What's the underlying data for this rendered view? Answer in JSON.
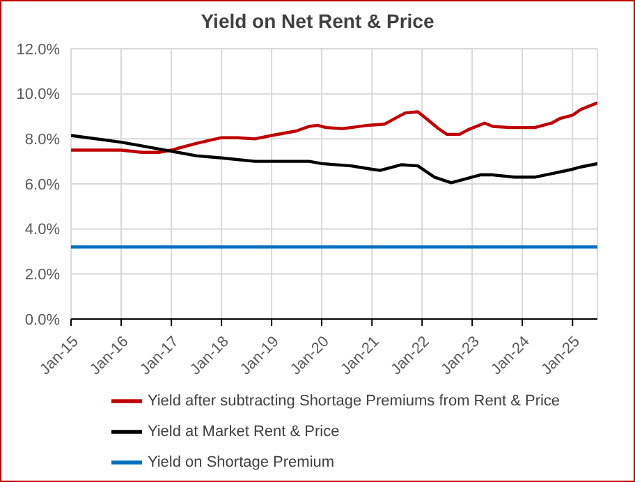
{
  "chart_data": {
    "type": "line",
    "title": "Yield on Net Rent & Price",
    "xlim": [
      "2015-01",
      "2025-07"
    ],
    "xticks": [
      {
        "value": "2015-01",
        "label": "Jan-15"
      },
      {
        "value": "2016-01",
        "label": "Jan-16"
      },
      {
        "value": "2017-01",
        "label": "Jan-17"
      },
      {
        "value": "2018-01",
        "label": "Jan-18"
      },
      {
        "value": "2019-01",
        "label": "Jan-19"
      },
      {
        "value": "2020-01",
        "label": "Jan-20"
      },
      {
        "value": "2021-01",
        "label": "Jan-21"
      },
      {
        "value": "2022-01",
        "label": "Jan-22"
      },
      {
        "value": "2023-01",
        "label": "Jan-23"
      },
      {
        "value": "2024-01",
        "label": "Jan-24"
      },
      {
        "value": "2025-01",
        "label": "Jan-25"
      }
    ],
    "ylim": [
      0,
      12
    ],
    "yticks": [
      {
        "value": 0,
        "label": "0.0%"
      },
      {
        "value": 2,
        "label": "2.0%"
      },
      {
        "value": 4,
        "label": "4.0%"
      },
      {
        "value": 6,
        "label": "6.0%"
      },
      {
        "value": 8,
        "label": "8.0%"
      },
      {
        "value": 10,
        "label": "10.0%"
      },
      {
        "value": 12,
        "label": "12.0%"
      }
    ],
    "grid": true,
    "legend": "bottom",
    "marker": "none",
    "line_style": "solid",
    "series": [
      {
        "name": "Yield after subtracting Shortage Premiums from Rent & Price",
        "color": "#c00000",
        "x": [
          "2015-01",
          "2016-01",
          "2016-06",
          "2016-10",
          "2017-01",
          "2017-07",
          "2018-01",
          "2018-05",
          "2018-09",
          "2019-01",
          "2019-07",
          "2019-10",
          "2019-12",
          "2020-02",
          "2020-06",
          "2020-12",
          "2021-04",
          "2021-07",
          "2021-09",
          "2021-12",
          "2022-02",
          "2022-05",
          "2022-07",
          "2022-10",
          "2022-12",
          "2023-04",
          "2023-06",
          "2023-10",
          "2024-04",
          "2024-08",
          "2024-10",
          "2025-01",
          "2025-03",
          "2025-07"
        ],
        "values": [
          7.5,
          7.5,
          7.4,
          7.4,
          7.5,
          7.8,
          8.05,
          8.05,
          8.0,
          8.15,
          8.35,
          8.55,
          8.6,
          8.5,
          8.45,
          8.6,
          8.65,
          8.95,
          9.15,
          9.2,
          8.9,
          8.45,
          8.2,
          8.2,
          8.4,
          8.7,
          8.55,
          8.5,
          8.5,
          8.7,
          8.9,
          9.05,
          9.3,
          9.6
        ]
      },
      {
        "name": "Yield at Market Rent & Price",
        "color": "#000000",
        "x": [
          "2015-01",
          "2016-01",
          "2017-01",
          "2017-07",
          "2018-01",
          "2018-09",
          "2019-10",
          "2020-01",
          "2020-08",
          "2021-01",
          "2021-03",
          "2021-08",
          "2021-12",
          "2022-04",
          "2022-08",
          "2022-12",
          "2023-03",
          "2023-06",
          "2023-11",
          "2024-04",
          "2024-08",
          "2025-01",
          "2025-03",
          "2025-07"
        ],
        "values": [
          8.15,
          7.85,
          7.45,
          7.25,
          7.15,
          7.0,
          7.0,
          6.9,
          6.8,
          6.65,
          6.6,
          6.85,
          6.8,
          6.3,
          6.05,
          6.25,
          6.4,
          6.4,
          6.3,
          6.3,
          6.45,
          6.65,
          6.75,
          6.9
        ]
      },
      {
        "name": "Yield on Shortage Premium",
        "color": "#0070c0",
        "x": [
          "2015-01",
          "2025-07"
        ],
        "values": [
          3.2,
          3.2
        ]
      }
    ]
  }
}
